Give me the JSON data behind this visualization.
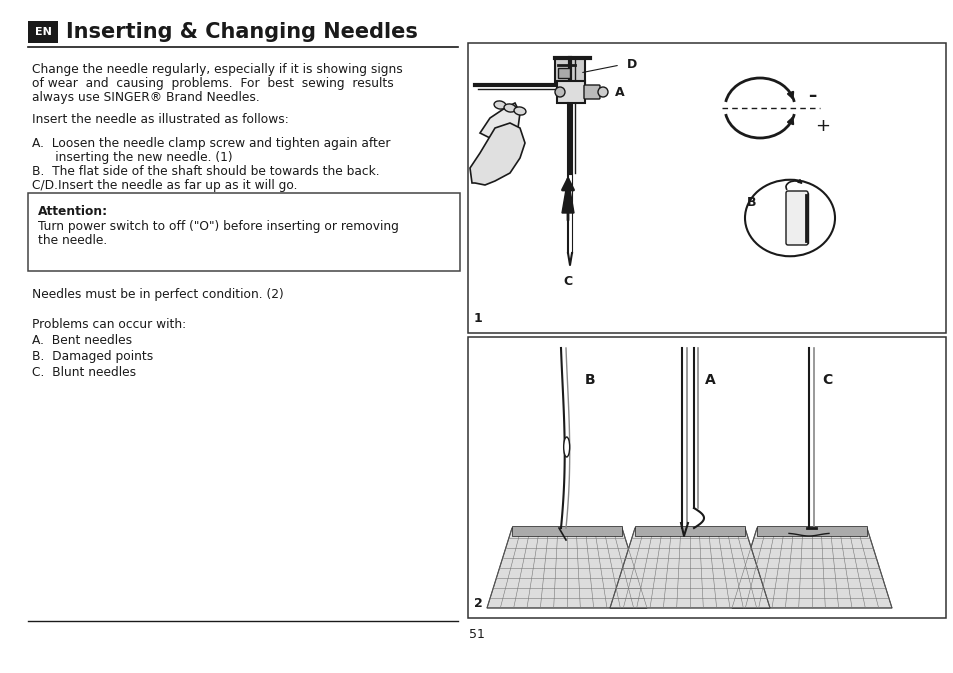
{
  "title": "Inserting & Changing Needles",
  "page_number": "51",
  "bg_color": "#ffffff",
  "text_color": "#1a1a1a",
  "body_text_1a": "Change the needle regularly, especially if it is showing signs",
  "body_text_1b": "of wear  and  causing  problems.  For  best  sewing  results",
  "body_text_1c": "always use SINGER® Brand Needles.",
  "body_text_2": "Insert the needle as illustrated as follows:",
  "step_a1": "A.  Loosen the needle clamp screw and tighten again after",
  "step_a2": "      inserting the new needle. (1)",
  "step_b": "B.  The flat side of the shaft should be towards the back.",
  "step_cd": "C/D.Insert the needle as far up as it will go.",
  "attention_title": "Attention:",
  "attention_body1": "Turn power switch to off (\"O\") before inserting or removing",
  "attention_body2": "the needle.",
  "body_text_3": "Needles must be in perfect condition. (2)",
  "body_text_4": "Problems can occur with:",
  "prob_a": "A.  Bent needles",
  "prob_b": "B.  Damaged points",
  "prob_c": "C.  Blunt needles",
  "diagram1_label": "1",
  "diagram2_label": "2",
  "label_A": "A",
  "label_B": "B",
  "label_C": "C",
  "label_D": "D",
  "label_plus": "+",
  "label_minus": "–"
}
